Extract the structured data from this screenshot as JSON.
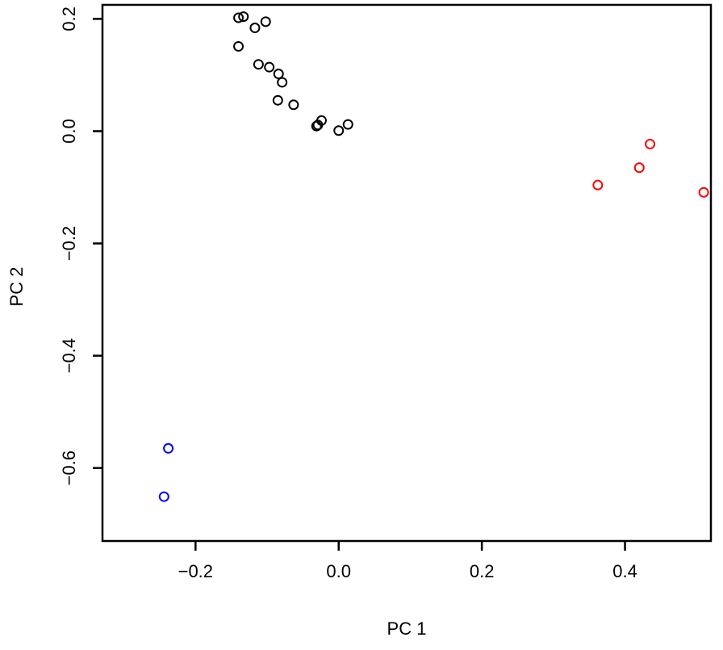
{
  "chart_data": {
    "type": "scatter",
    "title": "",
    "xlabel": "PC 1",
    "ylabel": "PC 2",
    "xlim": [
      -0.33,
      0.52
    ],
    "ylim": [
      -0.73,
      0.225
    ],
    "x_ticks": [
      -0.2,
      0.0,
      0.2,
      0.4
    ],
    "x_tick_labels": [
      "−0.2",
      "0.0",
      "0.2",
      "0.4"
    ],
    "y_ticks": [
      0.2,
      0.0,
      -0.2,
      -0.4,
      -0.6
    ],
    "y_tick_labels": [
      "0.2",
      "0.0",
      "−0.2",
      "−0.4",
      "−0.6"
    ],
    "grid": false,
    "legend": "none",
    "marker": "open-circle",
    "series": [
      {
        "color": "#000000",
        "points": [
          [
            -0.14,
            0.202
          ],
          [
            -0.133,
            0.204
          ],
          [
            -0.102,
            0.195
          ],
          [
            -0.117,
            0.184
          ],
          [
            -0.14,
            0.151
          ],
          [
            -0.112,
            0.119
          ],
          [
            -0.097,
            0.114
          ],
          [
            -0.084,
            0.102
          ],
          [
            -0.079,
            0.087
          ],
          [
            -0.085,
            0.055
          ],
          [
            -0.063,
            0.047
          ],
          [
            -0.024,
            0.019
          ],
          [
            -0.031,
            0.009
          ],
          [
            -0.029,
            0.011
          ],
          [
            0.0,
            0.001
          ],
          [
            0.013,
            0.012
          ]
        ]
      },
      {
        "color": "#ff0000",
        "points": [
          [
            0.435,
            -0.023
          ],
          [
            0.42,
            -0.065
          ],
          [
            0.362,
            -0.096
          ],
          [
            0.51,
            -0.109
          ]
        ]
      },
      {
        "color": "#0000ff",
        "points": [
          [
            -0.238,
            -0.565
          ],
          [
            -0.244,
            -0.651
          ]
        ]
      }
    ]
  }
}
